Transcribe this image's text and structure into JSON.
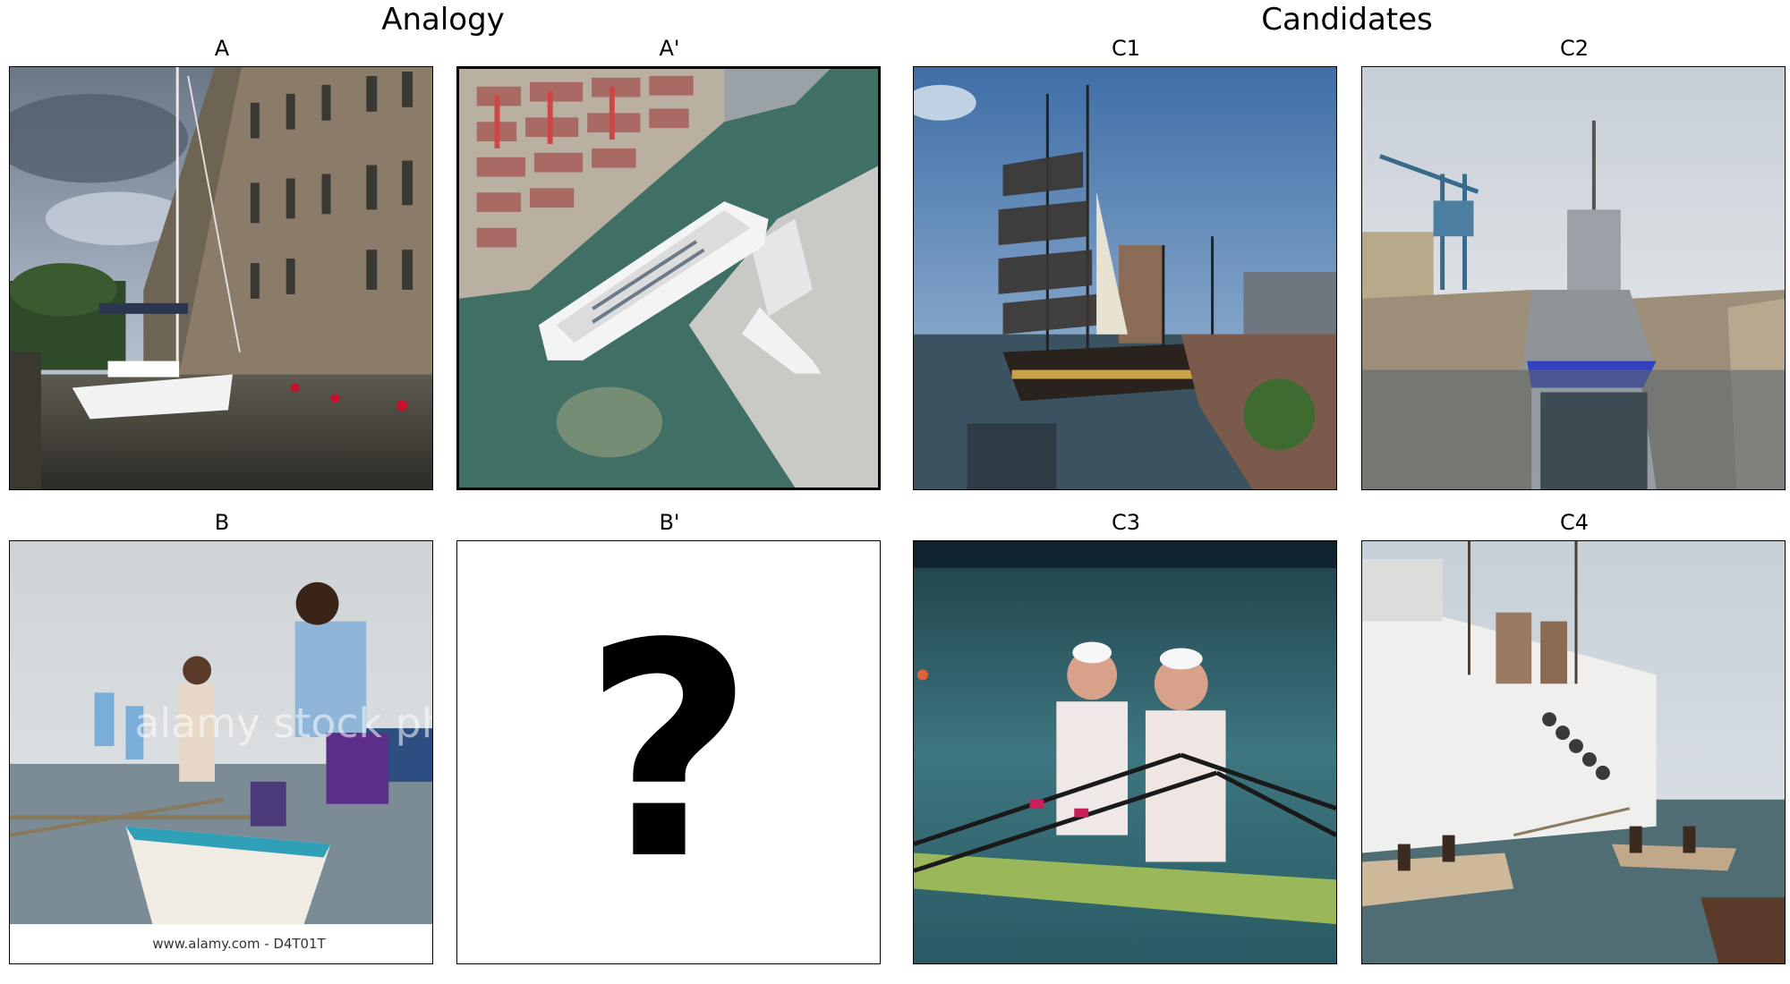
{
  "headers": {
    "analogy": "Analogy",
    "candidates": "Candidates"
  },
  "panels": {
    "a": {
      "label": "A"
    },
    "ap": {
      "label": "A'"
    },
    "b": {
      "label": "B",
      "watermark": "alamy stock photo",
      "footer": "www.alamy.com - D4T01T"
    },
    "bp": {
      "label": "B'",
      "placeholder": "?"
    },
    "c1": {
      "label": "C1"
    },
    "c2": {
      "label": "C2"
    },
    "c3": {
      "label": "C3"
    },
    "c4": {
      "label": "C4"
    }
  },
  "colors": {
    "sky": "#8fa6c4",
    "water": "#4a6a72",
    "border": "#000000"
  }
}
